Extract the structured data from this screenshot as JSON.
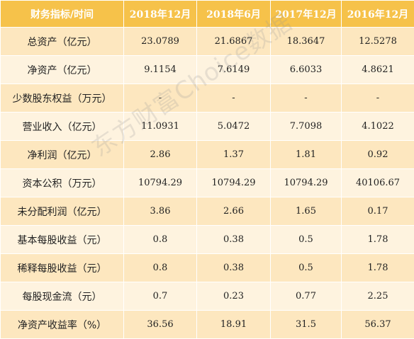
{
  "table": {
    "header": [
      "财务指标/时间",
      "2018年12月",
      "2018年6月",
      "2017年12月",
      "2016年12月"
    ],
    "rows": [
      {
        "label": "总资产（亿元）",
        "values": [
          "23.0789",
          "21.6867",
          "18.3647",
          "12.5278"
        ]
      },
      {
        "label": "净资产（亿元）",
        "values": [
          "9.1154",
          "7.6149",
          "6.6033",
          "4.8621"
        ]
      },
      {
        "label": "少数股东权益（万元）",
        "values": [
          "-",
          "-",
          "-",
          "-"
        ]
      },
      {
        "label": "营业收入（亿元）",
        "values": [
          "11.0931",
          "5.0472",
          "7.7098",
          "4.1022"
        ]
      },
      {
        "label": "净利润（亿元）",
        "values": [
          "2.86",
          "1.37",
          "1.81",
          "0.92"
        ]
      },
      {
        "label": "资本公积（万元）",
        "values": [
          "10794.29",
          "10794.29",
          "10794.29",
          "40106.67"
        ]
      },
      {
        "label": "未分配利润（亿元）",
        "values": [
          "3.86",
          "2.66",
          "1.65",
          "0.17"
        ]
      },
      {
        "label": "基本每股收益（元）",
        "values": [
          "0.8",
          "0.38",
          "0.5",
          "1.78"
        ]
      },
      {
        "label": "稀释每股收益（元）",
        "values": [
          "0.8",
          "0.38",
          "0.5",
          "1.78"
        ]
      },
      {
        "label": "每股现金流（元）",
        "values": [
          "0.7",
          "0.23",
          "0.77",
          "2.25"
        ]
      },
      {
        "label": "净资产收益率（%）",
        "values": [
          "36.56",
          "18.91",
          "31.5",
          "56.37"
        ]
      }
    ]
  },
  "watermark": "东方财富Choice数据",
  "colors": {
    "header_bg": "#f6c24a",
    "row_odd": "#fde7bf",
    "row_even": "#fef3df"
  }
}
